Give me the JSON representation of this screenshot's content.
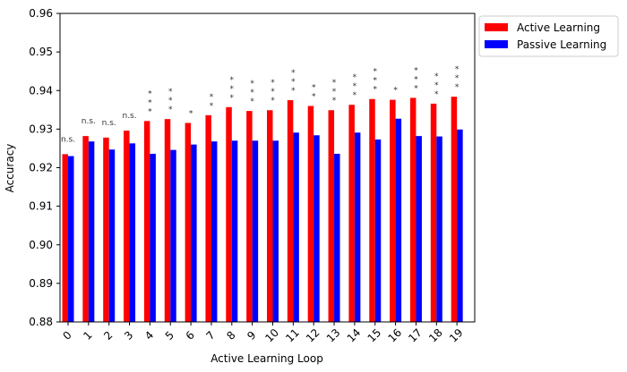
{
  "chart_data": {
    "type": "bar",
    "xlabel": "Active Learning Loop",
    "ylabel": "Accuracy",
    "ylim": [
      0.88,
      0.96
    ],
    "yticks": [
      "0.88",
      "0.89",
      "0.90",
      "0.91",
      "0.92",
      "0.93",
      "0.94",
      "0.95",
      "0.96"
    ],
    "categories": [
      "0",
      "1",
      "2",
      "3",
      "4",
      "5",
      "6",
      "7",
      "8",
      "9",
      "10",
      "11",
      "12",
      "13",
      "14",
      "15",
      "16",
      "17",
      "18",
      "19"
    ],
    "series": [
      {
        "name": "Active Learning",
        "color": "#ff0000",
        "values": [
          0.9235,
          0.9282,
          0.9278,
          0.9296,
          0.9321,
          0.9326,
          0.9316,
          0.9336,
          0.9357,
          0.9347,
          0.9349,
          0.9375,
          0.936,
          0.9349,
          0.9363,
          0.9378,
          0.9376,
          0.9381,
          0.9366,
          0.9384
        ]
      },
      {
        "name": "Passive Learning",
        "color": "#0000ff",
        "values": [
          0.923,
          0.9268,
          0.9247,
          0.9263,
          0.9236,
          0.9246,
          0.926,
          0.9268,
          0.927,
          0.927,
          0.927,
          0.9291,
          0.9284,
          0.9236,
          0.9291,
          0.9273,
          0.9327,
          0.9282,
          0.9281,
          0.9299
        ]
      }
    ],
    "significance": [
      "n.s.",
      "n.s.",
      "n.s.",
      "n.s.",
      "***",
      "***",
      "*",
      "**",
      "***",
      "***",
      "***",
      "***",
      "**",
      "***",
      "***",
      "***",
      "*",
      "***",
      "***",
      "***"
    ],
    "legend_position": "outside-top-right",
    "grid": false
  }
}
